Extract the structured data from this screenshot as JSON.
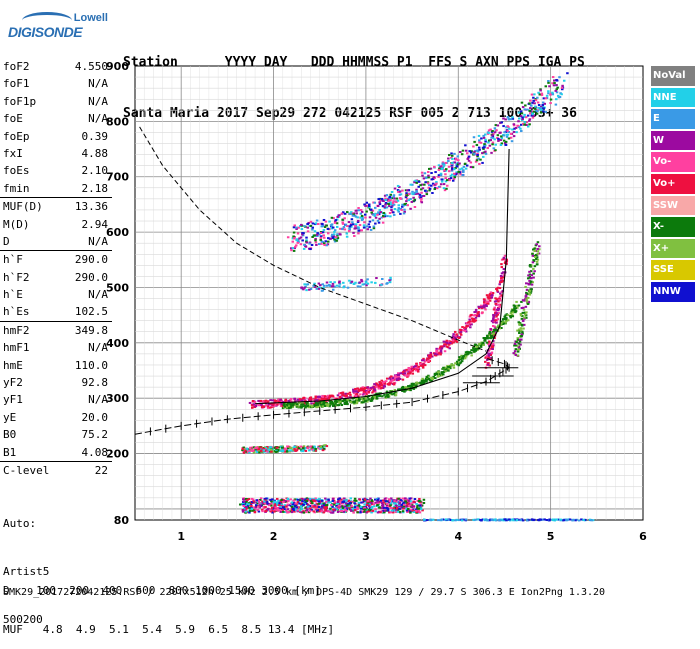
{
  "logo": {
    "top": "Lowell",
    "bottom": "DIGISONDE"
  },
  "header": {
    "line1": "Station      YYYY DAY   DDD HHMMSS P1  FFS S AXN PPS IGA PS",
    "line2": "Santa Maria 2017 Sep29 272 042125 RSF 005 2 713 100 03+ 36"
  },
  "params": {
    "group1": [
      {
        "label": "foF2",
        "value": "4.550"
      },
      {
        "label": "foF1",
        "value": "N/A"
      },
      {
        "label": "foF1p",
        "value": "N/A"
      },
      {
        "label": "foE",
        "value": "N/A"
      },
      {
        "label": "foEp",
        "value": "0.39"
      },
      {
        "label": "fxI",
        "value": "4.88"
      },
      {
        "label": "foEs",
        "value": "2.10"
      },
      {
        "label": "fmin",
        "value": "2.18"
      }
    ],
    "group2": [
      {
        "label": "MUF(D)",
        "value": "13.36"
      },
      {
        "label": "M(D)",
        "value": "2.94"
      },
      {
        "label": "D",
        "value": "N/A"
      }
    ],
    "group3": [
      {
        "label": "h`F",
        "value": "290.0"
      },
      {
        "label": "h`F2",
        "value": "290.0"
      },
      {
        "label": "h`E",
        "value": "N/A"
      },
      {
        "label": "h`Es",
        "value": "102.5"
      }
    ],
    "group4": [
      {
        "label": "hmF2",
        "value": "349.8"
      },
      {
        "label": "hmF1",
        "value": "N/A"
      },
      {
        "label": "hmE",
        "value": "110.0"
      },
      {
        "label": "yF2",
        "value": "92.8"
      },
      {
        "label": "yF1",
        "value": "N/A"
      },
      {
        "label": "yE",
        "value": "20.0"
      },
      {
        "label": "B0",
        "value": "75.2"
      },
      {
        "label": "B1",
        "value": "4.08"
      }
    ],
    "group5": [
      {
        "label": "C-level",
        "value": "22"
      }
    ]
  },
  "auto": {
    "line1": "Auto:",
    "line2": "Artist5",
    "line3": "500200"
  },
  "legend": [
    {
      "label": "NoVal",
      "color": "#808080"
    },
    {
      "label": "NNE",
      "color": "#22d0e8"
    },
    {
      "label": "E",
      "color": "#3a9ae6"
    },
    {
      "label": "W",
      "color": "#9c0aa0"
    },
    {
      "label": "Vo-",
      "color": "#ff40a0"
    },
    {
      "label": "Vo+",
      "color": "#ee1040"
    },
    {
      "label": "SSW",
      "color": "#f8a8a8"
    },
    {
      "label": "X-",
      "color": "#0c7a0c"
    },
    {
      "label": "X+",
      "color": "#80c040"
    },
    {
      "label": "SSE",
      "color": "#d8c800"
    },
    {
      "label": "NNW",
      "color": "#1010d0"
    }
  ],
  "bottom": {
    "line1": "D    100  200  400  600  800 1000 1500 3000 [km]",
    "line2": "MUF   4.8  4.9  5.1  5.4  5.9  6.5  8.5 13.4 [MHz]"
  },
  "footer": "SMK29_2017272042125.RSF / 220fx512h 25 kHz 2.5 km / DPS-4D SMK29 129 / 29.7 S 306.3 E Ion2Png 1.3.20",
  "chart_data": {
    "type": "scatter",
    "xlim": [
      0.5,
      6.0
    ],
    "ylim": [
      80,
      900
    ],
    "xticks": [
      1,
      2,
      3,
      4,
      5,
      6
    ],
    "yticks": [
      80,
      200,
      300,
      400,
      500,
      600,
      700,
      800,
      900
    ],
    "grid": true,
    "clusters": [
      {
        "name": "F2 O-mode trace",
        "x": [
          1.7,
          4.45
        ],
        "y": [
          290,
          560
        ],
        "colors": [
          "#ee1040",
          "#ff40a0"
        ]
      },
      {
        "name": "F2 X-mode trace",
        "x": [
          2.0,
          4.85
        ],
        "y": [
          285,
          580
        ],
        "colors": [
          "#0c7a0c",
          "#80c040"
        ]
      },
      {
        "name": "Second-hop F2",
        "x": [
          2.1,
          5.1
        ],
        "y": [
          580,
          900
        ],
        "colors": [
          "#22d0e8",
          "#3a9ae6",
          "#9c0aa0",
          "#1010d0"
        ]
      },
      {
        "name": "Es layer",
        "x": [
          1.65,
          2.55
        ],
        "y": [
          200,
          220
        ],
        "colors": [
          "#ee1040",
          "#0c7a0c"
        ]
      },
      {
        "name": "Low echoes",
        "x": [
          1.6,
          3.6
        ],
        "y": [
          95,
          130
        ],
        "colors": [
          "#9c0aa0",
          "#1010d0",
          "#ee1040"
        ]
      }
    ],
    "profile_curve": {
      "x": [
        0.5,
        1.0,
        1.5,
        2.0,
        2.5,
        3.0,
        3.5,
        4.0,
        4.3,
        4.45,
        4.55,
        4.5,
        4.3
      ],
      "y": [
        235,
        250,
        262,
        270,
        277,
        284,
        293,
        312,
        330,
        345,
        355,
        362,
        372
      ]
    },
    "dashed_curve": {
      "x": [
        0.55,
        0.8,
        1.2,
        1.6,
        2.0,
        2.5,
        3.0,
        3.5,
        4.0,
        4.3
      ],
      "y": [
        790,
        720,
        640,
        580,
        540,
        500,
        470,
        440,
        405,
        385
      ]
    },
    "fit_curve": {
      "x": [
        1.8,
        2.5,
        3.0,
        3.5,
        4.0,
        4.3,
        4.45,
        4.52,
        4.55
      ],
      "y": [
        290,
        295,
        303,
        318,
        345,
        380,
        430,
        550,
        750
      ]
    }
  }
}
